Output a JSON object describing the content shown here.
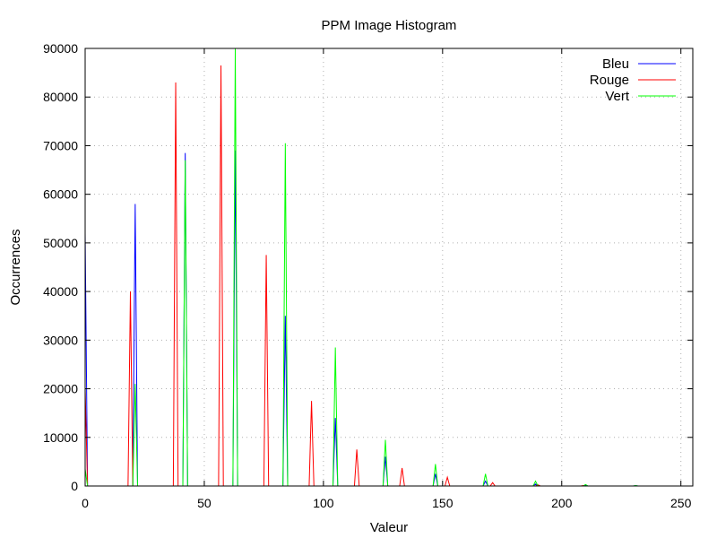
{
  "chart_data": {
    "type": "line",
    "title": "PPM Image Histogram",
    "xlabel": "Valeur",
    "ylabel": "Occurrences",
    "xlim": [
      0,
      255
    ],
    "ylim": [
      0,
      90000
    ],
    "xticks": [
      0,
      50,
      100,
      150,
      200,
      250
    ],
    "yticks": [
      0,
      10000,
      20000,
      30000,
      40000,
      50000,
      60000,
      70000,
      80000,
      90000
    ],
    "grid": true,
    "legend_position": "top-right",
    "series": [
      {
        "name": "Bleu",
        "color": "#0000ff",
        "points": [
          [
            0,
            52000
          ],
          [
            21,
            58000
          ],
          [
            42,
            68500
          ],
          [
            63,
            69000
          ],
          [
            84,
            35000
          ],
          [
            105,
            14000
          ],
          [
            126,
            6000
          ],
          [
            147,
            2500
          ],
          [
            168,
            1000
          ],
          [
            189,
            400
          ],
          [
            210,
            150
          ],
          [
            231,
            60
          ]
        ]
      },
      {
        "name": "Rouge",
        "color": "#ff0000",
        "points": [
          [
            0,
            20000
          ],
          [
            19,
            40000
          ],
          [
            38,
            83000
          ],
          [
            57,
            86500
          ],
          [
            76,
            47500
          ],
          [
            95,
            17500
          ],
          [
            114,
            7500
          ],
          [
            133,
            3700
          ],
          [
            152,
            1800
          ],
          [
            171,
            700
          ],
          [
            190,
            250
          ],
          [
            209,
            100
          ]
        ]
      },
      {
        "name": "Vert",
        "color": "#00ff00",
        "points": [
          [
            0,
            3500
          ],
          [
            21,
            21000
          ],
          [
            42,
            67000
          ],
          [
            63,
            90000
          ],
          [
            84,
            70500
          ],
          [
            105,
            28500
          ],
          [
            126,
            9500
          ],
          [
            147,
            4500
          ],
          [
            168,
            2500
          ],
          [
            189,
            1000
          ],
          [
            210,
            300
          ],
          [
            231,
            100
          ]
        ]
      }
    ]
  }
}
